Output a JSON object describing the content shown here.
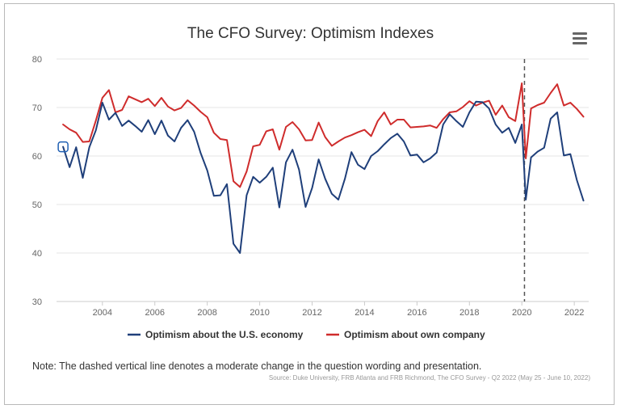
{
  "chart_data": {
    "type": "line",
    "title": "The CFO Survey: Optimism Indexes",
    "xlabel": "",
    "ylabel": "",
    "ylim": [
      30,
      80
    ],
    "yticks": [
      "80",
      "70",
      "60",
      "50",
      "40",
      "30"
    ],
    "xlim": [
      2002.25,
      2022.55
    ],
    "xticks": [
      "2004",
      "2006",
      "2008",
      "2010",
      "2012",
      "2014",
      "2016",
      "2018",
      "2020",
      "2022"
    ],
    "grid": "horizontal",
    "legend_position": "bottom",
    "annotation_vline_x": 2020.1,
    "series": [
      {
        "name": "Optimism about the U.S. economy",
        "color": "#1f3f7a",
        "points": [
          [
            2002.5,
            61.9
          ],
          [
            2002.75,
            57.7
          ],
          [
            2003.0,
            61.8
          ],
          [
            2003.25,
            55.5
          ],
          [
            2003.5,
            61.8
          ],
          [
            2003.75,
            65.3
          ],
          [
            2004.0,
            71.0
          ],
          [
            2004.25,
            67.5
          ],
          [
            2004.5,
            68.9
          ],
          [
            2004.75,
            66.2
          ],
          [
            2005.0,
            67.3
          ],
          [
            2005.25,
            66.2
          ],
          [
            2005.5,
            65.0
          ],
          [
            2005.75,
            67.4
          ],
          [
            2006.0,
            64.5
          ],
          [
            2006.25,
            67.3
          ],
          [
            2006.5,
            64.2
          ],
          [
            2006.75,
            63.0
          ],
          [
            2007.0,
            65.8
          ],
          [
            2007.25,
            67.4
          ],
          [
            2007.5,
            65.0
          ],
          [
            2007.75,
            60.6
          ],
          [
            2008.0,
            57.0
          ],
          [
            2008.25,
            51.8
          ],
          [
            2008.5,
            51.9
          ],
          [
            2008.75,
            54.2
          ],
          [
            2009.0,
            41.9
          ],
          [
            2009.25,
            40.0
          ],
          [
            2009.5,
            51.9
          ],
          [
            2009.75,
            55.7
          ],
          [
            2010.0,
            54.5
          ],
          [
            2010.25,
            55.7
          ],
          [
            2010.5,
            57.6
          ],
          [
            2010.75,
            49.4
          ],
          [
            2011.0,
            58.7
          ],
          [
            2011.25,
            61.3
          ],
          [
            2011.5,
            57.2
          ],
          [
            2011.75,
            49.5
          ],
          [
            2012.0,
            53.4
          ],
          [
            2012.25,
            59.3
          ],
          [
            2012.5,
            55.3
          ],
          [
            2012.75,
            52.2
          ],
          [
            2013.0,
            51.0
          ],
          [
            2013.25,
            55.3
          ],
          [
            2013.5,
            60.8
          ],
          [
            2013.75,
            58.2
          ],
          [
            2014.0,
            57.3
          ],
          [
            2014.25,
            60.0
          ],
          [
            2014.5,
            61.0
          ],
          [
            2014.75,
            62.4
          ],
          [
            2015.0,
            63.7
          ],
          [
            2015.25,
            64.6
          ],
          [
            2015.5,
            63.0
          ],
          [
            2015.75,
            60.1
          ],
          [
            2016.0,
            60.3
          ],
          [
            2016.25,
            58.7
          ],
          [
            2016.5,
            59.5
          ],
          [
            2016.75,
            60.7
          ],
          [
            2017.0,
            66.5
          ],
          [
            2017.25,
            68.6
          ],
          [
            2017.5,
            67.2
          ],
          [
            2017.75,
            66.0
          ],
          [
            2018.0,
            69.0
          ],
          [
            2018.25,
            71.2
          ],
          [
            2018.5,
            71.1
          ],
          [
            2018.75,
            69.8
          ],
          [
            2019.0,
            66.5
          ],
          [
            2019.25,
            64.8
          ],
          [
            2019.5,
            65.8
          ],
          [
            2019.75,
            62.7
          ],
          [
            2020.0,
            66.5
          ],
          [
            2020.15,
            51.0
          ],
          [
            2020.35,
            59.7
          ],
          [
            2020.6,
            60.9
          ],
          [
            2020.85,
            61.7
          ],
          [
            2021.1,
            67.7
          ],
          [
            2021.35,
            69.0
          ],
          [
            2021.6,
            60.1
          ],
          [
            2021.85,
            60.4
          ],
          [
            2022.1,
            55.0
          ],
          [
            2022.35,
            50.8
          ]
        ]
      },
      {
        "name": "Optimism about own company",
        "color": "#cf2c2c",
        "points": [
          [
            2002.5,
            66.5
          ],
          [
            2002.75,
            65.5
          ],
          [
            2003.0,
            64.8
          ],
          [
            2003.25,
            62.9
          ],
          [
            2003.5,
            63.0
          ],
          [
            2003.75,
            67.3
          ],
          [
            2004.0,
            72.0
          ],
          [
            2004.25,
            73.6
          ],
          [
            2004.5,
            69.0
          ],
          [
            2004.75,
            69.5
          ],
          [
            2005.0,
            72.3
          ],
          [
            2005.25,
            71.7
          ],
          [
            2005.5,
            71.1
          ],
          [
            2005.75,
            71.8
          ],
          [
            2006.0,
            70.3
          ],
          [
            2006.25,
            72.0
          ],
          [
            2006.5,
            70.2
          ],
          [
            2006.75,
            69.4
          ],
          [
            2007.0,
            69.9
          ],
          [
            2007.25,
            71.5
          ],
          [
            2007.5,
            70.4
          ],
          [
            2007.75,
            69.1
          ],
          [
            2008.0,
            68.0
          ],
          [
            2008.25,
            64.8
          ],
          [
            2008.5,
            63.5
          ],
          [
            2008.75,
            63.3
          ],
          [
            2009.0,
            54.8
          ],
          [
            2009.25,
            53.6
          ],
          [
            2009.5,
            56.8
          ],
          [
            2009.75,
            62.0
          ],
          [
            2010.0,
            62.3
          ],
          [
            2010.25,
            65.1
          ],
          [
            2010.5,
            65.5
          ],
          [
            2010.75,
            61.3
          ],
          [
            2011.0,
            66.0
          ],
          [
            2011.25,
            67.0
          ],
          [
            2011.5,
            65.5
          ],
          [
            2011.75,
            63.2
          ],
          [
            2012.0,
            63.3
          ],
          [
            2012.25,
            66.9
          ],
          [
            2012.5,
            63.9
          ],
          [
            2012.75,
            62.1
          ],
          [
            2013.0,
            63.0
          ],
          [
            2013.25,
            63.8
          ],
          [
            2013.5,
            64.3
          ],
          [
            2013.75,
            64.9
          ],
          [
            2014.0,
            65.4
          ],
          [
            2014.25,
            64.1
          ],
          [
            2014.5,
            67.2
          ],
          [
            2014.75,
            69.0
          ],
          [
            2015.0,
            66.5
          ],
          [
            2015.25,
            67.5
          ],
          [
            2015.5,
            67.5
          ],
          [
            2015.75,
            65.9
          ],
          [
            2016.0,
            66.0
          ],
          [
            2016.25,
            66.1
          ],
          [
            2016.5,
            66.3
          ],
          [
            2016.75,
            65.8
          ],
          [
            2017.0,
            67.6
          ],
          [
            2017.25,
            69.0
          ],
          [
            2017.5,
            69.2
          ],
          [
            2017.75,
            70.1
          ],
          [
            2018.0,
            71.3
          ],
          [
            2018.25,
            70.4
          ],
          [
            2018.5,
            71.0
          ],
          [
            2018.75,
            71.4
          ],
          [
            2019.0,
            68.5
          ],
          [
            2019.25,
            70.4
          ],
          [
            2019.5,
            68.0
          ],
          [
            2019.75,
            67.2
          ],
          [
            2020.0,
            75.0
          ],
          [
            2020.15,
            59.5
          ],
          [
            2020.35,
            69.8
          ],
          [
            2020.6,
            70.5
          ],
          [
            2020.85,
            71.0
          ],
          [
            2021.1,
            73.0
          ],
          [
            2021.35,
            74.8
          ],
          [
            2021.6,
            70.4
          ],
          [
            2021.85,
            71.0
          ],
          [
            2022.1,
            69.7
          ],
          [
            2022.35,
            68.1
          ]
        ]
      }
    ]
  },
  "note": "Note: The dashed vertical line denotes a moderate change in the question wording and presentation.",
  "source": "Source: Duke University, FRB Atlanta and FRB Richmond, The CFO Survey - Q2 2022 (May 25 - June 10, 2022)",
  "menu_icon": "hamburger-menu-icon",
  "colors": {
    "grid": "#e6e6e6",
    "axis_text": "#666666",
    "vline": "#555555",
    "marker_stroke": "#1f5fb3"
  }
}
